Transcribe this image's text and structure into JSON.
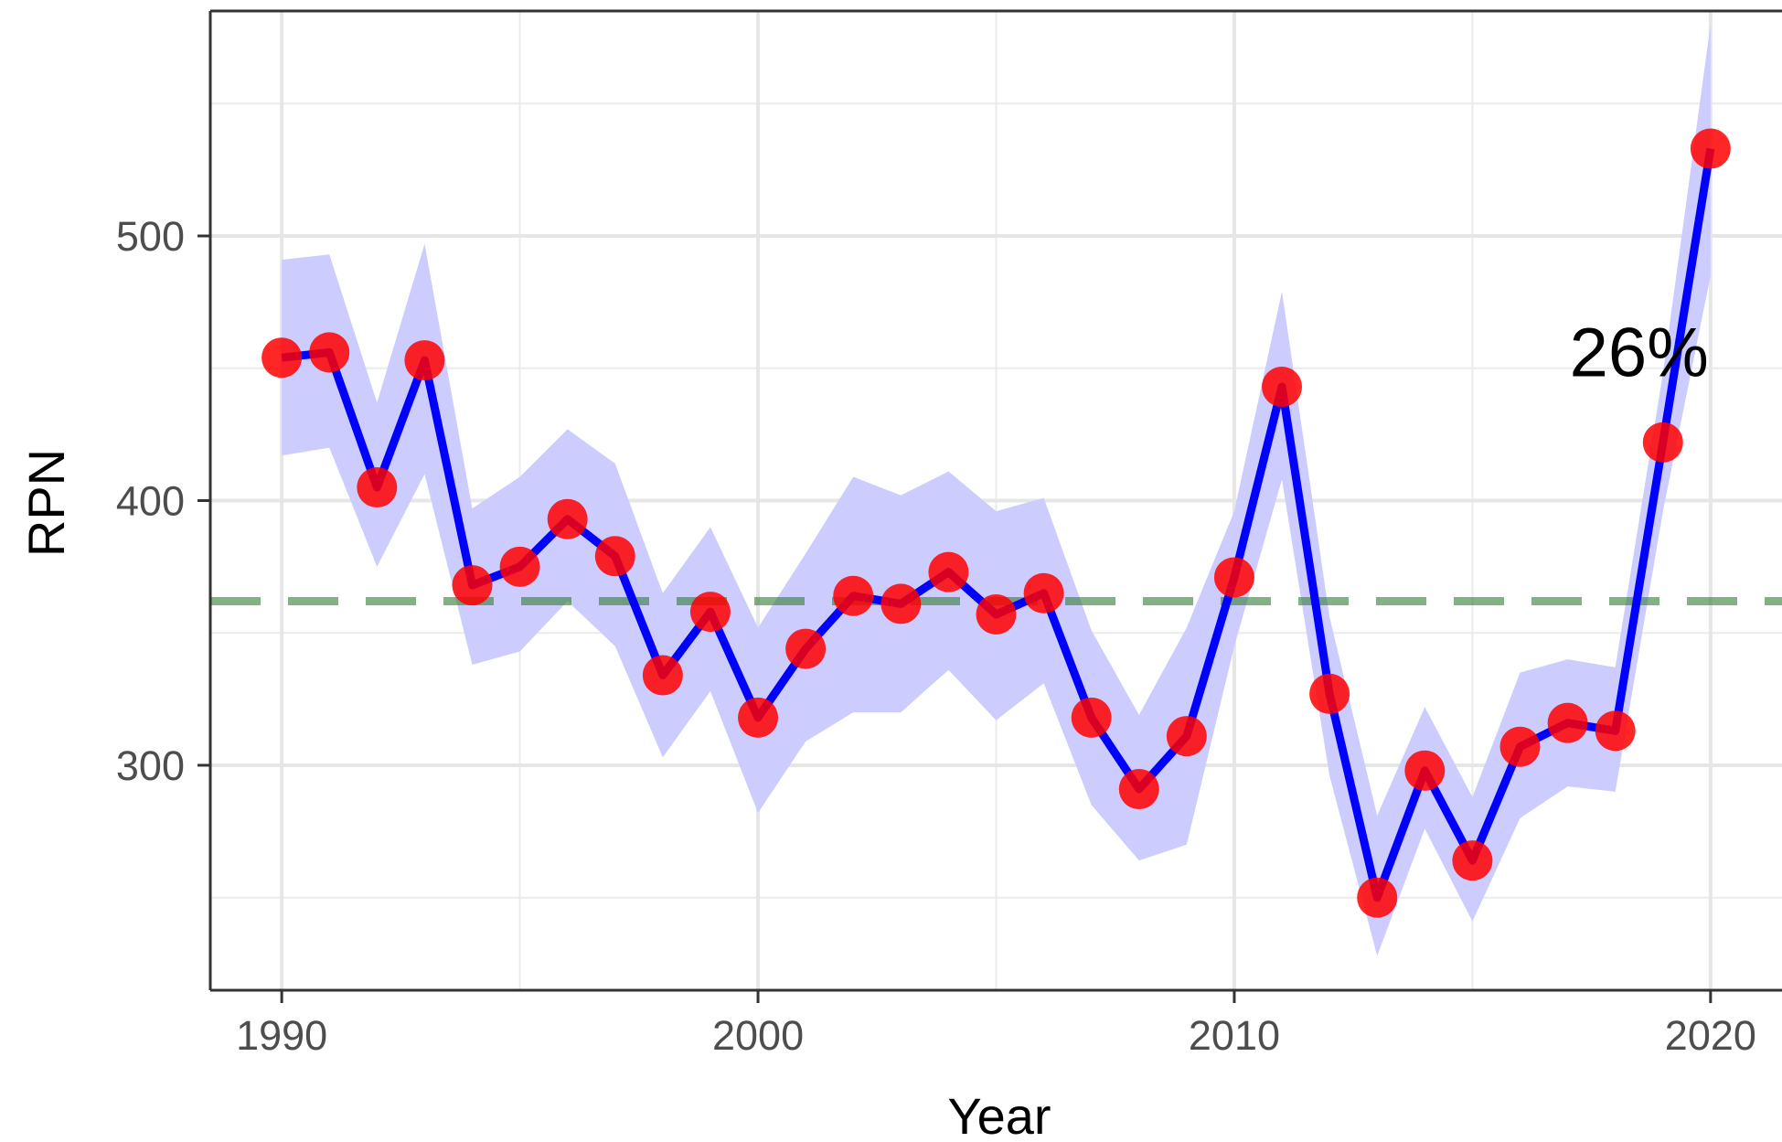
{
  "chart_data": {
    "type": "line",
    "xlabel": "Year",
    "ylabel": "RPN",
    "xlim": [
      1988.5,
      2021.5
    ],
    "ylim": [
      215,
      585
    ],
    "x_ticks": [
      1990,
      2000,
      2010,
      2020
    ],
    "x_minor_ticks": [
      1995,
      2005,
      2015
    ],
    "y_ticks": [
      300,
      400,
      500
    ],
    "y_minor_ticks": [
      250,
      350,
      450,
      550
    ],
    "grid": true,
    "series": [
      {
        "x": [
          1990,
          1991,
          1992,
          1993,
          1994,
          1995,
          1996,
          1997,
          1998,
          1999,
          2000,
          2001,
          2002,
          2003,
          2004,
          2005,
          2006,
          2007,
          2008,
          2009,
          2010,
          2011,
          2012,
          2013,
          2014,
          2015,
          2016,
          2017,
          2018,
          2019,
          2020
        ],
        "values": [
          454,
          456,
          405,
          453,
          368,
          375,
          393,
          379,
          334,
          358,
          318,
          344,
          364,
          361,
          373,
          357,
          365,
          318,
          291,
          311,
          371,
          443,
          327,
          250,
          298,
          264,
          307,
          316,
          313,
          422,
          533
        ],
        "lower": [
          417,
          420,
          375,
          410,
          338,
          343,
          362,
          345,
          303,
          328,
          282,
          309,
          320,
          320,
          336,
          317,
          331,
          285,
          264,
          270,
          345,
          408,
          296,
          228,
          276,
          241,
          280,
          292,
          290,
          396,
          485
        ],
        "upper": [
          491,
          493,
          437,
          497,
          397,
          409,
          427,
          414,
          365,
          390,
          352,
          380,
          409,
          402,
          411,
          396,
          401,
          351,
          319,
          352,
          396,
          479,
          356,
          281,
          322,
          288,
          335,
          340,
          337,
          448,
          580
        ],
        "line_color": "#0000ff",
        "point_color": "#ff0000",
        "band_color": "#ccccff"
      }
    ],
    "reference_line": {
      "y": 362,
      "color": "#2e7d32",
      "style": "dashed"
    },
    "annotations": [
      {
        "text": "26%",
        "x": 2018.5,
        "y": 447
      }
    ]
  }
}
